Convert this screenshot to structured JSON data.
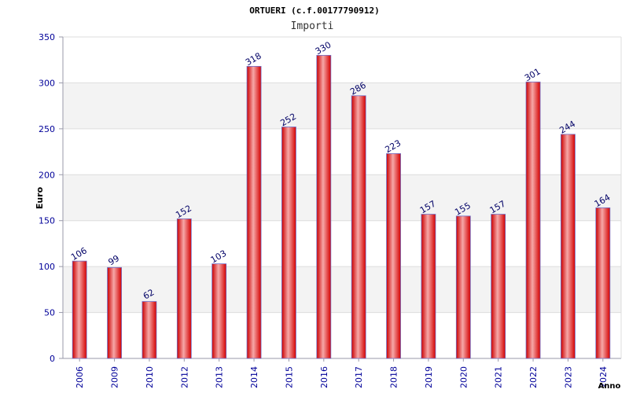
{
  "chart_data": {
    "type": "bar",
    "title": "ORTUERI (c.f.00177790912)",
    "subtitle": "Importi",
    "ylabel": "Euro",
    "xlabel": "Anno",
    "ylim": [
      0,
      350
    ],
    "yticks": [
      0,
      50,
      100,
      150,
      200,
      250,
      300,
      350
    ],
    "grid": true,
    "categories": [
      "2006",
      "2009",
      "2010",
      "2012",
      "2013",
      "2014",
      "2015",
      "2016",
      "2017",
      "2018",
      "2019",
      "2020",
      "2021",
      "2022",
      "2023",
      "2024"
    ],
    "values": [
      106,
      99,
      62,
      152,
      103,
      318,
      252,
      330,
      286,
      223,
      157,
      155,
      157,
      301,
      244,
      164
    ],
    "colors": {
      "bar_edge": "#cc0000",
      "bar_center": "#f6a8a8",
      "bar_outline": "#6f6fc8",
      "band": "#f3f3f3",
      "grid": "#dddddd",
      "axis": "#9999aa",
      "tick_text": "#000099",
      "value_text": "#000066"
    }
  }
}
